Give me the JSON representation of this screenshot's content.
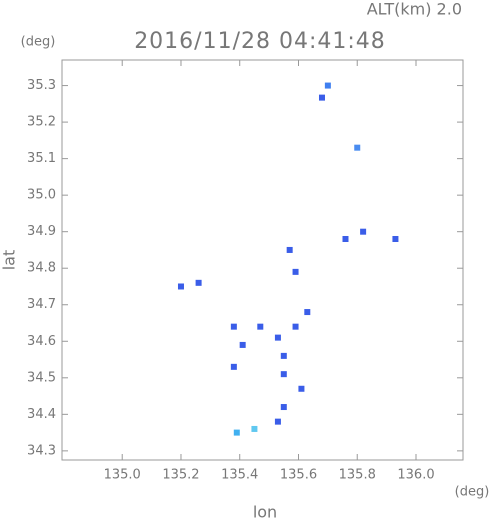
{
  "chart_data": {
    "type": "scatter",
    "title": "2016/11/28 04:41:48",
    "subtitle": "ALT(km) 2.0",
    "x_label": "lon",
    "y_label": "lat",
    "x_unit": "(deg)",
    "y_unit": "(deg)",
    "xlim": [
      134.795,
      136.16
    ],
    "ylim": [
      34.275,
      35.37
    ],
    "xticks": [
      {
        "value": 135,
        "label": "135.0"
      },
      135.2,
      135.4,
      135.6,
      135.8,
      {
        "value": 136,
        "label": "136.0"
      }
    ],
    "yticks": [
      34.3,
      34.4,
      34.5,
      34.6,
      34.7,
      34.8,
      34.9,
      {
        "value": 35,
        "label": "35.0"
      },
      35.1,
      35.2,
      35.3
    ],
    "x": [
      135.7,
      135.68,
      135.8,
      135.76,
      135.82,
      135.93,
      135.57,
      135.26,
      135.2,
      135.59,
      135.63,
      135.59,
      135.47,
      135.38,
      135.41,
      135.53,
      135.55,
      135.55,
      135.61,
      135.55,
      135.53,
      135.39,
      135.45,
      135.38
    ],
    "values": [
      35.3,
      35.267,
      35.13,
      34.88,
      34.9,
      34.88,
      34.85,
      34.76,
      34.75,
      34.79,
      34.68,
      34.64,
      34.64,
      34.64,
      34.59,
      34.61,
      34.56,
      34.51,
      34.47,
      34.42,
      34.38,
      34.35,
      34.36,
      34.53
    ],
    "colors": [
      "#3f7ff0",
      "#3a5de8",
      "#4a8cf0",
      "#3a5de8",
      "#3a5de8",
      "#3a5de8",
      "#3a5de8",
      "#3a5de8",
      "#3a5de8",
      "#3a5de8",
      "#3a5de8",
      "#3a5de8",
      "#3a5de8",
      "#3a5de8",
      "#3a5de8",
      "#3a5de8",
      "#3a5de8",
      "#3a5de8",
      "#3a5de8",
      "#3a5de8",
      "#3a5de8",
      "#40b0f0",
      "#60c8f0",
      "#3a5de8"
    ]
  }
}
